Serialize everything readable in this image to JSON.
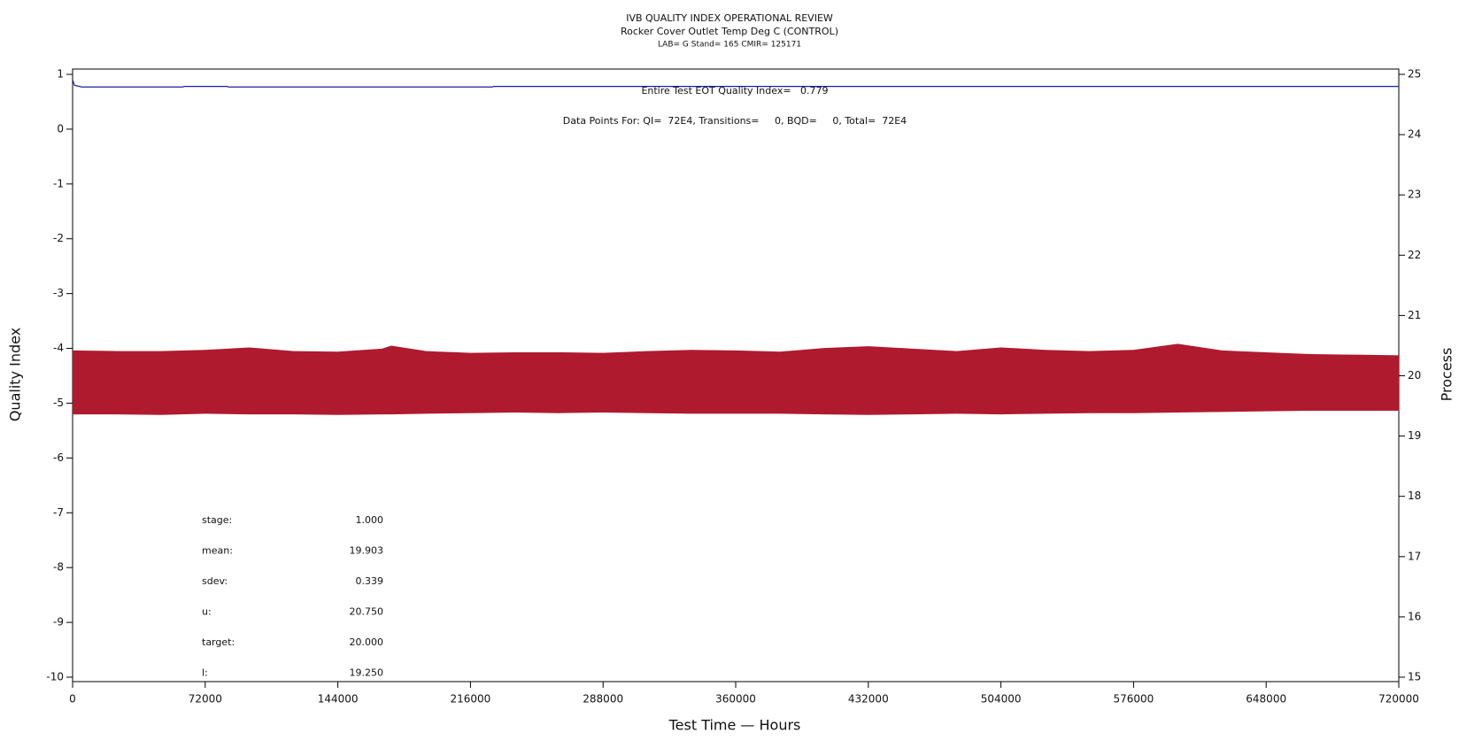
{
  "chart_data": {
    "type": "line",
    "title": "IVB QUALITY INDEX OPERATIONAL REVIEW",
    "subtitle": "Rocker Cover Outlet Temp Deg C (CONTROL)",
    "subtitle2": "LAB= G Stand= 165 CMIR= 125171",
    "xlabel": "Test Time — Hours",
    "ylabel": "Quality Index",
    "y2label": "Process",
    "annotations": [
      "Entire Test EOT Quality Index=   0.779",
      "Data Points For: QI=  72E4, Transitions=     0, BQD=     0, Total=  72E4"
    ],
    "stats": [
      [
        "stage:",
        "1.000"
      ],
      [
        "mean:",
        "19.903"
      ],
      [
        "sdev:",
        "0.339"
      ],
      [
        "u:",
        "20.750"
      ],
      [
        "target:",
        "20.000"
      ],
      [
        "l:",
        "19.250"
      ]
    ],
    "xlim": [
      0,
      720000
    ],
    "xticks": [
      0,
      72000,
      144000,
      216000,
      288000,
      360000,
      432000,
      504000,
      576000,
      648000,
      720000
    ],
    "ylim": [
      -10,
      1
    ],
    "yticks": [
      -10,
      -9,
      -8,
      -7,
      -6,
      -5,
      -4,
      -3,
      -2,
      -1,
      0,
      1
    ],
    "y2lim": [
      15,
      25
    ],
    "y2ticks": [
      15,
      16,
      17,
      18,
      19,
      20,
      21,
      22,
      23,
      24,
      25
    ],
    "series": [
      {
        "color": "#1c1ca8",
        "x": [
          0,
          1000,
          5000,
          60000,
          60500,
          84000,
          84500,
          228000,
          228500,
          720000
        ],
        "values": [
          0.9,
          0.8,
          0.77,
          0.77,
          0.78,
          0.78,
          0.77,
          0.77,
          0.78,
          0.78
        ]
      }
    ],
    "band": {
      "color": "#b01a2e",
      "axis": "y2",
      "x": [
        0,
        24000,
        48000,
        72000,
        96000,
        120000,
        144000,
        168000,
        173000,
        192000,
        216000,
        240000,
        264000,
        288000,
        312000,
        336000,
        360000,
        384000,
        408000,
        432000,
        456000,
        480000,
        504000,
        528000,
        552000,
        576000,
        600000,
        624000,
        648000,
        672000,
        696000,
        720000
      ],
      "upper": [
        20.42,
        20.41,
        20.41,
        20.43,
        20.47,
        20.41,
        20.4,
        20.45,
        20.5,
        20.41,
        20.38,
        20.39,
        20.39,
        20.38,
        20.41,
        20.43,
        20.42,
        20.4,
        20.46,
        20.49,
        20.45,
        20.41,
        20.47,
        20.43,
        20.41,
        20.43,
        20.53,
        20.42,
        20.39,
        20.36,
        20.35,
        20.34
      ],
      "lower": [
        19.36,
        19.36,
        19.35,
        19.37,
        19.36,
        19.36,
        19.35,
        19.36,
        19.36,
        19.37,
        19.38,
        19.39,
        19.38,
        19.39,
        19.38,
        19.37,
        19.37,
        19.37,
        19.36,
        19.35,
        19.36,
        19.37,
        19.36,
        19.37,
        19.38,
        19.38,
        19.39,
        19.4,
        19.41,
        19.42,
        19.42,
        19.42
      ]
    }
  }
}
